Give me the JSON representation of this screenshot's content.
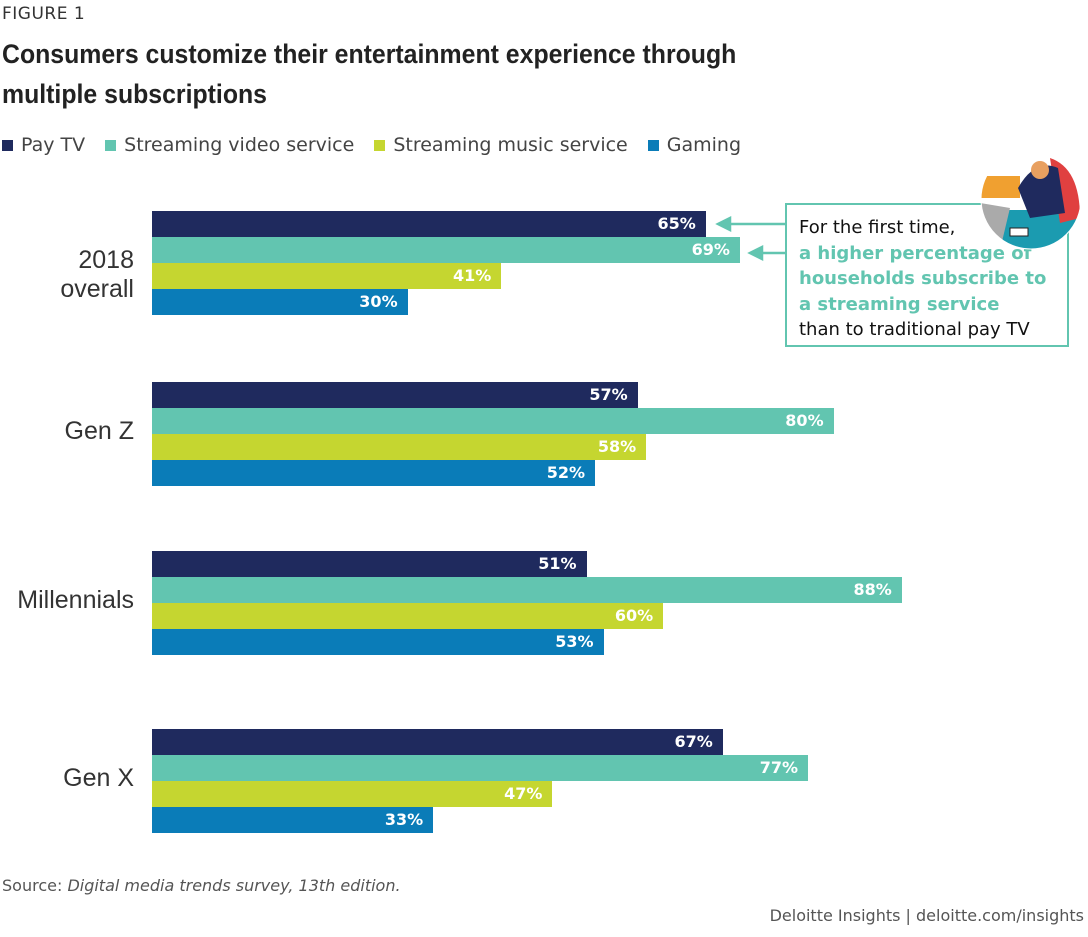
{
  "figure_label": "FIGURE 1",
  "chart_data": {
    "type": "bar",
    "orientation": "horizontal",
    "title": "Consumers customize their entertainment experience through multiple subscriptions",
    "categories": [
      "2018 overall",
      "Gen Z",
      "Millennials",
      "Gen X"
    ],
    "series": [
      {
        "name": "Pay TV",
        "color": "#1f2a5e",
        "values": [
          65,
          57,
          51,
          67
        ]
      },
      {
        "name": "Streaming video service",
        "color": "#62c5b0",
        "values": [
          69,
          80,
          88,
          77
        ]
      },
      {
        "name": "Streaming music service",
        "color": "#c5d630",
        "values": [
          41,
          58,
          60,
          47
        ]
      },
      {
        "name": "Gaming",
        "color": "#0a7cb8",
        "values": [
          30,
          52,
          53,
          33
        ]
      }
    ],
    "value_suffix": "%",
    "xlim": [
      0,
      100
    ],
    "grid": false,
    "legend": "top-left"
  },
  "callout": {
    "line1": "For the first time,",
    "highlight": "a higher percentage of households subscribe to a streaming service",
    "line3": "than to traditional pay TV"
  },
  "source_label": "Source:",
  "source_text": "Digital media trends survey, 13th edition.",
  "credit": "Deloitte Insights | deloitte.com/insights"
}
